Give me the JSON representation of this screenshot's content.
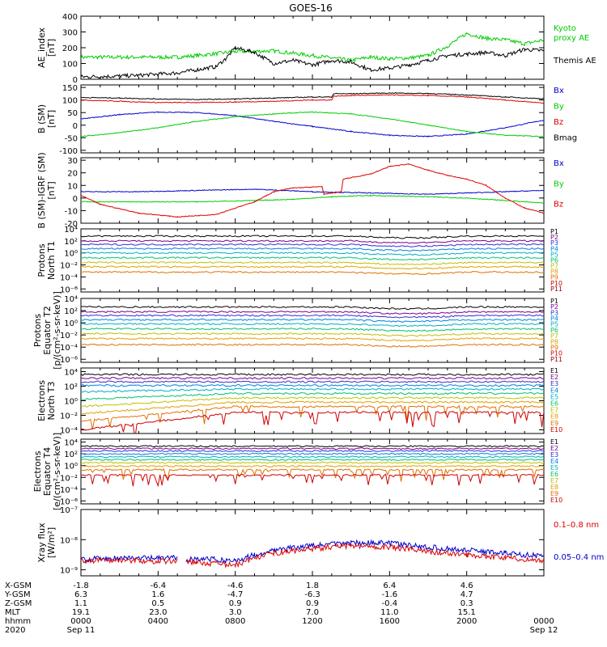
{
  "title": "GOES-16",
  "colors": {
    "black": "#000000",
    "red": "#dd0000",
    "green": "#00cc00",
    "blue": "#0000cc",
    "p1": "#000000",
    "p2": "#7a0090",
    "p3": "#3030d0",
    "p4": "#0080e0",
    "p5": "#00b0c0",
    "p6": "#00c070",
    "p7": "#c0c000",
    "p8": "#e0a000",
    "p9": "#e07000",
    "p10": "#cc0000",
    "p11": "#990000"
  },
  "chart_data": [
    {
      "type": "line",
      "id": "ae",
      "ylabel": "AE_index\n[nT]",
      "yticks": [
        "400",
        "300",
        "200",
        "100",
        "0"
      ],
      "ylim": [
        0,
        400
      ],
      "legend": [
        {
          "text": "Kyoto",
          "color": "#00cc00"
        },
        {
          "text": "proxy AE",
          "color": "#00cc00"
        },
        {
          "text": "Themis AE",
          "color": "#000000"
        }
      ],
      "series": [
        {
          "color": "#00cc00",
          "x": [
            0,
            5,
            6,
            8,
            10,
            12,
            13,
            14,
            15,
            16,
            17,
            18,
            19,
            20,
            21,
            22,
            23,
            24
          ],
          "values": [
            140,
            140,
            150,
            175,
            180,
            150,
            135,
            120,
            140,
            130,
            135,
            150,
            210,
            290,
            260,
            250,
            225,
            250
          ]
        },
        {
          "color": "#000000",
          "x": [
            0,
            2,
            3,
            5,
            7,
            7.5,
            8,
            9,
            10,
            11,
            12,
            13,
            14,
            15,
            16,
            17,
            18,
            19,
            20,
            21,
            22,
            23,
            24
          ],
          "values": [
            15,
            20,
            25,
            40,
            80,
            130,
            200,
            170,
            100,
            120,
            90,
            120,
            110,
            60,
            70,
            90,
            120,
            150,
            160,
            170,
            150,
            190,
            180
          ]
        }
      ]
    },
    {
      "type": "line",
      "id": "bsm",
      "ylabel": "B (SM)\n[nT]",
      "yticks": [
        "150",
        "100",
        "50",
        "0",
        "-50",
        "-100"
      ],
      "ylim": [
        -110,
        160
      ],
      "legend": [
        {
          "text": "Bx",
          "color": "#0000cc"
        },
        {
          "text": "By",
          "color": "#00cc00"
        },
        {
          "text": "Bz",
          "color": "#dd0000"
        },
        {
          "text": "Bmag",
          "color": "#000000"
        }
      ],
      "series": [
        {
          "color": "#0000cc",
          "x": [
            0,
            2,
            4,
            6,
            8,
            10,
            12,
            14,
            16,
            18,
            20,
            22,
            24
          ],
          "values": [
            25,
            42,
            52,
            50,
            38,
            15,
            -5,
            -25,
            -40,
            -45,
            -35,
            -10,
            20
          ]
        },
        {
          "color": "#00cc00",
          "x": [
            0,
            2,
            4,
            6,
            8,
            10,
            12,
            14,
            16,
            18,
            20,
            22,
            24
          ],
          "values": [
            -45,
            -30,
            -10,
            15,
            33,
            45,
            52,
            45,
            25,
            0,
            -25,
            -40,
            -45
          ]
        },
        {
          "color": "#dd0000",
          "x": [
            0,
            2,
            4,
            6,
            8,
            10,
            12,
            13,
            13.1,
            14,
            16,
            18,
            20,
            22,
            24
          ],
          "values": [
            100,
            95,
            90,
            90,
            92,
            95,
            100,
            100,
            115,
            118,
            120,
            118,
            112,
            100,
            88
          ]
        },
        {
          "color": "#000000",
          "x": [
            0,
            2,
            4,
            6,
            8,
            10,
            12,
            13,
            13.1,
            14,
            16,
            18,
            20,
            22,
            24
          ],
          "values": [
            110,
            108,
            104,
            102,
            104,
            108,
            112,
            112,
            125,
            125,
            128,
            126,
            120,
            112,
            105
          ]
        }
      ]
    },
    {
      "type": "line",
      "id": "bdiff",
      "ylabel": "B (SM)-IGRF (SM)\n[nT]",
      "yticks": [
        "30",
        "20",
        "10",
        "0",
        "-10",
        "-20"
      ],
      "ylim": [
        -20,
        32
      ],
      "legend": [
        {
          "text": "Bx",
          "color": "#0000cc"
        },
        {
          "text": "By",
          "color": "#00cc00"
        },
        {
          "text": "Bz",
          "color": "#dd0000"
        }
      ],
      "series": [
        {
          "color": "#0000cc",
          "x": [
            0,
            3,
            6,
            9,
            12,
            15,
            18,
            20,
            22,
            24
          ],
          "values": [
            5,
            5,
            6,
            7,
            5,
            4,
            3,
            4,
            5,
            6
          ]
        },
        {
          "color": "#00cc00",
          "x": [
            0,
            3,
            6,
            9,
            11,
            12,
            13,
            15,
            18,
            20,
            22,
            24
          ],
          "values": [
            -3,
            -3,
            -3,
            -2,
            -1,
            0,
            1,
            2,
            1,
            0,
            -2,
            -4
          ]
        },
        {
          "color": "#dd0000",
          "x": [
            0,
            1,
            3,
            5,
            7,
            9,
            10,
            11,
            12.5,
            12.6,
            13.5,
            13.6,
            15,
            16,
            17,
            18,
            19,
            20,
            21,
            22,
            23,
            24
          ],
          "values": [
            2,
            -5,
            -12,
            -15,
            -13,
            -3,
            5,
            8,
            9,
            3,
            5,
            15,
            19,
            25,
            27,
            22,
            18,
            15,
            10,
            0,
            -8,
            -12
          ]
        }
      ]
    },
    {
      "type": "line",
      "id": "p_north",
      "log": true,
      "ylabel": "Protons\nNorth T1",
      "yticks": [
        "10⁴",
        "10²",
        "10⁰",
        "10⁻²",
        "10⁻⁴",
        "10⁻⁶"
      ],
      "ylim": [
        -6.5,
        4
      ],
      "channels": [
        "P1",
        "P2",
        "P3",
        "P4",
        "P5",
        "P6",
        "P7",
        "P8",
        "P9",
        "P10",
        "P11"
      ],
      "levels": [
        2.8,
        2.0,
        1.4,
        0.7,
        0.0,
        -0.8,
        -1.6,
        -2.3,
        -3.2,
        -4.2,
        -5.0
      ],
      "present": [
        true,
        true,
        true,
        true,
        true,
        true,
        true,
        true,
        true,
        false,
        false
      ]
    },
    {
      "type": "line",
      "id": "p_equator",
      "log": true,
      "ylabel": "Protons\nEquator T2\n[p/(cm²-s-sr-keV)]",
      "yticks": [
        "10⁴",
        "10²",
        "10⁰",
        "10⁻²",
        "10⁻⁴",
        "10⁻⁶"
      ],
      "ylim": [
        -6.5,
        4
      ],
      "channels": [
        "P1",
        "P2",
        "P3",
        "P4",
        "P5",
        "P6",
        "P7",
        "P8",
        "P9",
        "P10",
        "P11"
      ],
      "levels": [
        2.6,
        1.8,
        1.2,
        0.5,
        -0.2,
        -1.0,
        -1.8,
        -2.6,
        -3.6,
        -4.6,
        -5.4
      ],
      "present": [
        true,
        true,
        true,
        true,
        true,
        true,
        true,
        true,
        true,
        false,
        false
      ]
    },
    {
      "type": "line",
      "id": "e_north",
      "log": true,
      "ylabel": "Electrons\nNorth T3",
      "yticks": [
        "10⁴",
        "10²",
        "10⁰",
        "10⁻²",
        "10⁻⁴"
      ],
      "ylim": [
        -4.5,
        4.5
      ],
      "channels": [
        "E1",
        "E2",
        "E3",
        "E4",
        "E5",
        "E6",
        "E7",
        "E8",
        "E9",
        "E10"
      ],
      "levels": [
        3.6,
        3.1,
        2.6,
        2.1,
        1.6,
        1.0,
        0.4,
        -0.2,
        -0.8,
        -1.6
      ],
      "present": [
        true,
        true,
        true,
        true,
        true,
        true,
        true,
        true,
        true,
        true
      ]
    },
    {
      "type": "line",
      "id": "e_equator",
      "log": true,
      "ylabel": "Electrons\nEquator T4\n[e/(cm²-s-sr-keV)]",
      "yticks": [
        "10⁴",
        "10²",
        "10⁰",
        "10⁻²",
        "10⁻⁴",
        "10⁻⁶"
      ],
      "ylim": [
        -6.5,
        4.5
      ],
      "channels": [
        "E1",
        "E2",
        "E3",
        "E4",
        "E5",
        "E6",
        "E7",
        "E8",
        "E9",
        "E10"
      ],
      "levels": [
        3.3,
        2.9,
        2.5,
        2.0,
        1.5,
        1.0,
        0.5,
        -0.1,
        -0.7,
        -1.6
      ],
      "present": [
        true,
        true,
        true,
        true,
        true,
        true,
        true,
        true,
        true,
        true
      ]
    },
    {
      "type": "line",
      "id": "xray",
      "log": true,
      "ylabel": "Xray flux\n[W/m²]",
      "yticks": [
        "10⁻⁷",
        "10⁻⁸",
        "10⁻⁹"
      ],
      "ylim": [
        -9.2,
        -7
      ],
      "legend": [
        {
          "text": "0.1–0.8 nm",
          "color": "#dd0000"
        },
        {
          "text": "0.05–0.4 nm",
          "color": "#0000cc"
        }
      ],
      "series": [
        {
          "color": "#0000cc",
          "x": [
            0,
            2,
            4,
            5,
            5.05,
            5.4,
            5.45,
            6,
            8,
            9,
            10,
            12,
            14,
            16,
            18,
            20,
            22,
            24
          ],
          "values": [
            -8.65,
            -8.6,
            -8.62,
            -8.6,
            null,
            null,
            -8.65,
            -8.62,
            -8.7,
            -8.5,
            -8.35,
            -8.2,
            -8.1,
            -8.12,
            -8.25,
            -8.35,
            -8.45,
            -8.55
          ]
        },
        {
          "color": "#dd0000",
          "x": [
            0,
            2,
            4,
            5,
            5.05,
            5.4,
            5.45,
            6,
            8,
            9,
            10,
            12,
            14,
            16,
            18,
            20,
            22,
            24
          ],
          "values": [
            -8.7,
            -8.68,
            -8.72,
            -8.7,
            null,
            null,
            -8.72,
            -8.75,
            -8.85,
            -8.6,
            -8.45,
            -8.3,
            -8.2,
            -8.25,
            -8.4,
            -8.5,
            -8.6,
            -8.7
          ]
        }
      ]
    }
  ],
  "x_axis": {
    "rows": [
      {
        "label": "X-GSM",
        "values": [
          "-1.8",
          "-6.4",
          "-4.6",
          "1.8",
          "6.4",
          "4.6",
          ""
        ]
      },
      {
        "label": "Y-GSM",
        "values": [
          "6.3",
          "1.6",
          "-4.7",
          "-6.3",
          "-1.6",
          "4.7",
          ""
        ]
      },
      {
        "label": "Z-GSM",
        "values": [
          "1.1",
          "0.5",
          "0.9",
          "0.9",
          "-0.4",
          "0.3",
          ""
        ]
      },
      {
        "label": "MLT",
        "values": [
          "19.1",
          "23.0",
          "3.0",
          "7.0",
          "11.0",
          "15.1",
          ""
        ]
      },
      {
        "label": "hhmm",
        "values": [
          "0000",
          "0400",
          "0800",
          "1200",
          "1600",
          "2000",
          "0000"
        ]
      }
    ],
    "year": "2020",
    "start_date": "Sep 11",
    "end_date": "Sep 12"
  }
}
